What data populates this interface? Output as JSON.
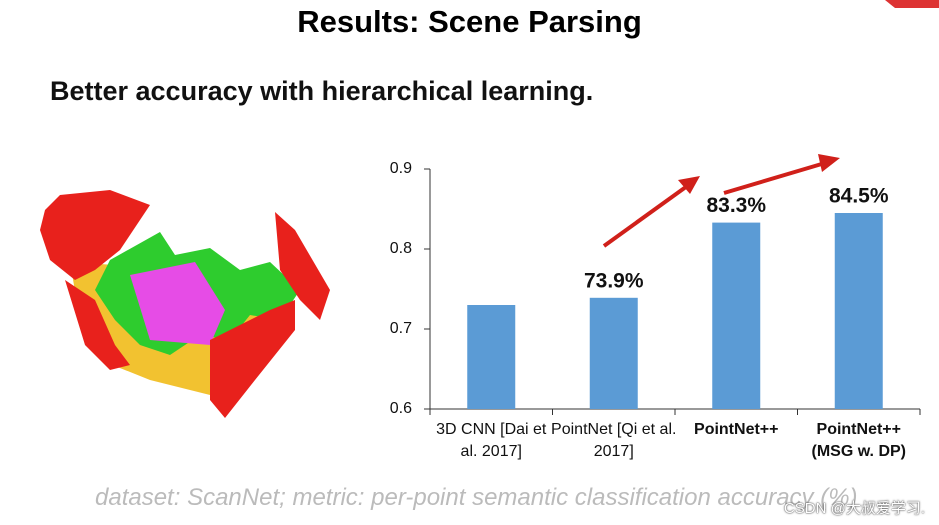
{
  "slide": {
    "title": "Results: Scene Parsing",
    "subtitle": "Better accuracy with hierarchical learning.",
    "footnote": "dataset: ScanNet; metric: per-point semantic classification accuracy (%)",
    "watermark": "CSDN @大叔爱学习."
  },
  "chart_data": {
    "type": "bar",
    "categories": [
      "3D CNN\n[Dai et al. 2017]",
      "PointNet\n[Qi et al. 2017]",
      "PointNet++",
      "PointNet++\n(MSG w. DP)"
    ],
    "values": [
      0.73,
      0.739,
      0.833,
      0.845
    ],
    "value_labels": [
      null,
      "73.9%",
      "83.3%",
      "84.5%"
    ],
    "color": "#5b9bd5",
    "ylim": [
      0.6,
      0.9
    ],
    "yticks": [
      0.6,
      0.7,
      0.8,
      0.9
    ],
    "grid": false
  }
}
